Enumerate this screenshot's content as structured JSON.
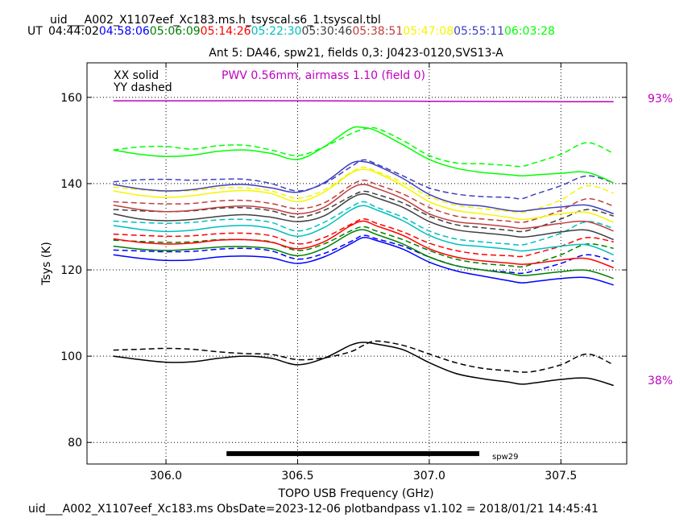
{
  "header": {
    "table_name": "uid___A002_X1107eef_Xc183.ms.h_tsyscal.s6_1.tsyscal.tbl",
    "ut_prefix": "UT",
    "times": [
      {
        "label": "04:44:02",
        "color": "#000000"
      },
      {
        "label": "04:58:06",
        "color": "#0000ff"
      },
      {
        "label": "05:06:09",
        "color": "#008000"
      },
      {
        "label": "05:14:26",
        "color": "#ff0000"
      },
      {
        "label": "05:22:30",
        "color": "#00bfbf"
      },
      {
        "label": "05:30:46",
        "color": "#404040"
      },
      {
        "label": "05:38:51",
        "color": "#bf3f3f"
      },
      {
        "label": "05:47:08",
        "color": "#f5f500"
      },
      {
        "label": "05:55:11",
        "color": "#4040c0"
      },
      {
        "label": "06:03:28",
        "color": "#00ff00"
      }
    ]
  },
  "chart_data": {
    "type": "line",
    "title": "Ant 5: DA46,  spw21,  fields 0,3: J0423-0120,SVS13-A",
    "xlabel": "TOPO USB Frequency (GHz)",
    "ylabel": "Tsys (K)",
    "xlim": [
      305.7,
      307.75
    ],
    "ylim": [
      75,
      168
    ],
    "xticks": [
      306.0,
      306.5,
      307.0,
      307.5
    ],
    "xtick_labels": [
      "306.0",
      "306.5",
      "307.0",
      "307.5"
    ],
    "yticks": [
      80,
      100,
      120,
      140,
      160
    ],
    "ytick_labels": [
      "80",
      "100",
      "120",
      "140",
      "160"
    ],
    "grid": true,
    "polarization_legend": [
      "XX solid",
      "YY dashed"
    ],
    "pwv_annotation": "PWV 0.56mm, airmass 1.10 (field 0)",
    "atm_colors": {
      "pwv": "#c000c0"
    },
    "atm_transmission": {
      "x": [
        305.8,
        306.0,
        306.5,
        307.0,
        307.5,
        307.7
      ],
      "y": [
        159.2,
        159.2,
        159.2,
        159.1,
        159.0,
        159.0
      ],
      "label_top": "93%",
      "label_bottom": "38%"
    },
    "spw_bar": {
      "x_start": 306.23,
      "x_end": 307.19,
      "y": 77.4,
      "label": "spw29"
    },
    "x_samples": [
      305.8,
      305.9,
      306.0,
      306.1,
      306.2,
      306.3,
      306.4,
      306.5,
      306.6,
      306.7,
      306.75,
      306.8,
      306.9,
      307.0,
      307.1,
      307.2,
      307.3,
      307.35,
      307.4,
      307.5,
      307.6,
      307.7
    ],
    "series": [
      {
        "color": "#000000",
        "xx": [
          100.0,
          99.2,
          98.6,
          98.7,
          99.5,
          100.0,
          99.5,
          98.0,
          99.5,
          102.5,
          103.2,
          102.8,
          101.5,
          98.5,
          96.0,
          94.8,
          94.0,
          93.5,
          93.8,
          94.6,
          94.9,
          93.2
        ],
        "yy": [
          101.4,
          101.6,
          101.8,
          101.6,
          101.0,
          100.6,
          100.4,
          99.2,
          99.6,
          101.0,
          102.5,
          103.5,
          102.5,
          100.5,
          98.5,
          97.2,
          96.6,
          96.3,
          96.5,
          98.0,
          100.5,
          98.0
        ]
      },
      {
        "color": "#0000ff",
        "xx": [
          123.5,
          122.7,
          122.2,
          122.3,
          123.0,
          123.2,
          122.8,
          121.5,
          123.0,
          126.0,
          127.5,
          126.8,
          124.8,
          121.8,
          119.8,
          118.6,
          117.5,
          117.0,
          117.3,
          118.0,
          118.2,
          116.5
        ],
        "yy": [
          124.6,
          124.4,
          124.2,
          124.3,
          124.8,
          125.0,
          124.4,
          122.5,
          123.8,
          126.5,
          128.0,
          127.2,
          125.5,
          123.0,
          121.0,
          120.0,
          119.5,
          119.2,
          119.8,
          121.5,
          123.5,
          122.0
        ]
      },
      {
        "color": "#008000",
        "xx": [
          125.5,
          124.8,
          124.5,
          124.8,
          125.3,
          125.4,
          124.9,
          123.3,
          125.0,
          128.5,
          129.3,
          128.2,
          126.0,
          123.0,
          121.0,
          120.0,
          119.2,
          118.7,
          118.9,
          119.6,
          119.9,
          118.0
        ],
        "yy": [
          126.9,
          126.6,
          126.4,
          126.5,
          127.0,
          127.0,
          126.5,
          124.5,
          126.0,
          129.0,
          130.0,
          129.0,
          127.0,
          124.5,
          122.5,
          121.5,
          121.0,
          120.7,
          121.5,
          123.5,
          126.0,
          125.0
        ]
      },
      {
        "color": "#ff0000",
        "xx": [
          127.2,
          126.4,
          126.0,
          126.2,
          126.9,
          127.0,
          126.4,
          124.9,
          126.5,
          130.2,
          131.3,
          130.2,
          128.0,
          124.9,
          123.0,
          122.1,
          121.6,
          121.3,
          121.5,
          122.3,
          122.6,
          120.5
        ],
        "yy": [
          128.3,
          128.0,
          127.8,
          127.9,
          128.4,
          128.5,
          127.9,
          126.0,
          127.5,
          130.5,
          131.8,
          130.8,
          128.8,
          126.2,
          124.5,
          123.6,
          123.3,
          123.1,
          123.8,
          125.5,
          127.5,
          126.5
        ]
      },
      {
        "color": "#00bfbf",
        "xx": [
          130.3,
          129.4,
          128.9,
          129.2,
          130.0,
          130.3,
          129.6,
          127.8,
          129.8,
          133.8,
          134.9,
          133.9,
          131.4,
          128.0,
          126.0,
          125.4,
          124.8,
          124.4,
          124.7,
          125.5,
          125.8,
          123.5
        ],
        "yy": [
          131.3,
          131.0,
          130.8,
          131.0,
          131.6,
          131.7,
          131.0,
          129.0,
          131.0,
          134.5,
          135.8,
          134.5,
          132.2,
          129.0,
          127.2,
          126.5,
          126.0,
          125.8,
          126.5,
          128.5,
          131.2,
          129.6
        ]
      },
      {
        "color": "#404040",
        "xx": [
          133.0,
          131.8,
          131.4,
          131.7,
          132.4,
          132.8,
          132.2,
          131.2,
          132.5,
          136.5,
          137.6,
          136.7,
          134.5,
          131.2,
          129.3,
          128.6,
          128.0,
          127.6,
          127.9,
          128.8,
          129.2,
          127.0
        ],
        "yy": [
          134.0,
          133.7,
          133.5,
          133.7,
          134.3,
          134.4,
          133.7,
          132.2,
          133.8,
          137.0,
          138.2,
          137.5,
          135.5,
          132.5,
          130.5,
          129.8,
          129.2,
          128.9,
          129.6,
          131.8,
          134.0,
          132.5
        ]
      },
      {
        "color": "#bf3f3f",
        "xx": [
          135.0,
          134.0,
          133.5,
          133.8,
          134.5,
          134.8,
          134.2,
          133.0,
          134.5,
          138.8,
          139.8,
          138.9,
          136.5,
          133.0,
          131.2,
          130.6,
          130.0,
          129.6,
          129.9,
          130.8,
          131.2,
          129.0
        ],
        "yy": [
          135.8,
          135.5,
          135.3,
          135.4,
          136.0,
          136.1,
          135.4,
          134.2,
          135.5,
          139.5,
          140.8,
          139.8,
          137.6,
          134.5,
          132.5,
          131.8,
          131.3,
          131.0,
          131.7,
          133.8,
          136.5,
          134.8
        ]
      },
      {
        "color": "#f5f500",
        "xx": [
          138.3,
          137.3,
          136.8,
          137.2,
          138.0,
          138.4,
          137.7,
          135.8,
          138.0,
          142.3,
          143.3,
          142.5,
          139.5,
          135.8,
          133.8,
          133.0,
          132.2,
          131.7,
          132.0,
          133.0,
          133.3,
          131.0
        ],
        "yy": [
          139.2,
          138.6,
          138.2,
          138.4,
          139.0,
          139.0,
          138.3,
          136.6,
          138.5,
          142.5,
          143.8,
          142.8,
          140.2,
          137.0,
          135.0,
          134.2,
          133.6,
          133.3,
          134.0,
          136.2,
          139.5,
          137.8
        ]
      },
      {
        "color": "#4040c0",
        "xx": [
          139.8,
          138.8,
          138.3,
          138.6,
          139.5,
          139.8,
          139.0,
          138.0,
          140.2,
          144.6,
          145.1,
          144.2,
          141.2,
          137.5,
          135.4,
          134.8,
          133.8,
          133.6,
          134.0,
          134.6,
          135.0,
          133.0
        ],
        "yy": [
          140.4,
          140.9,
          141.0,
          140.8,
          141.0,
          141.0,
          140.0,
          138.3,
          140.0,
          143.8,
          145.5,
          144.5,
          141.8,
          139.0,
          137.6,
          137.0,
          136.8,
          136.5,
          137.5,
          139.5,
          141.8,
          140.2
        ]
      },
      {
        "color": "#00ff00",
        "xx": [
          147.8,
          146.8,
          146.3,
          146.6,
          147.5,
          147.8,
          147.0,
          145.6,
          148.5,
          152.7,
          153.0,
          152.2,
          149.0,
          145.6,
          143.6,
          142.6,
          142.1,
          141.8,
          142.0,
          142.4,
          142.6,
          140.2
        ],
        "yy": [
          147.8,
          148.5,
          148.6,
          148.0,
          148.8,
          148.9,
          147.8,
          146.5,
          148.5,
          151.5,
          152.6,
          152.8,
          150.0,
          146.5,
          144.8,
          144.6,
          144.2,
          144.0,
          144.8,
          146.8,
          149.5,
          147.0
        ]
      }
    ]
  },
  "footer": {
    "text": "uid___A002_X1107eef_Xc183.ms  ObsDate=2023-12-06   plotbandpass v1.102 = 2018/01/21 14:45:41"
  }
}
